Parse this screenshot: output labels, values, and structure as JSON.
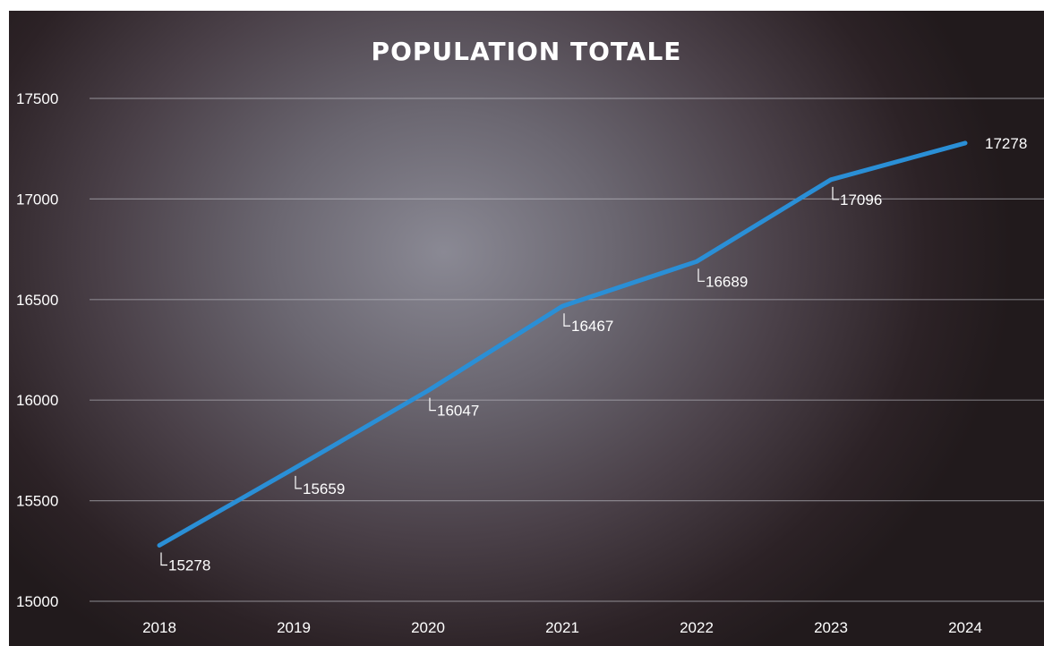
{
  "chart_data": {
    "type": "line",
    "title": "POPULATION TOTALE",
    "categories": [
      "2018",
      "2019",
      "2020",
      "2021",
      "2022",
      "2023",
      "2024"
    ],
    "series": [
      {
        "values": [
          15278,
          15659,
          16047,
          16467,
          16689,
          17096,
          17278
        ]
      }
    ],
    "data_labels": [
      "15278",
      "15659",
      "16047",
      "16467",
      "16689",
      "17096",
      "17278"
    ],
    "ylim": [
      15000,
      17500
    ],
    "yticks": [
      "15000",
      "15500",
      "16000",
      "16500",
      "17000",
      "17500"
    ],
    "xlabel": "",
    "ylabel": "",
    "grid": true,
    "colors": {
      "line": "#2a8fd6",
      "text": "#ffffff"
    }
  }
}
